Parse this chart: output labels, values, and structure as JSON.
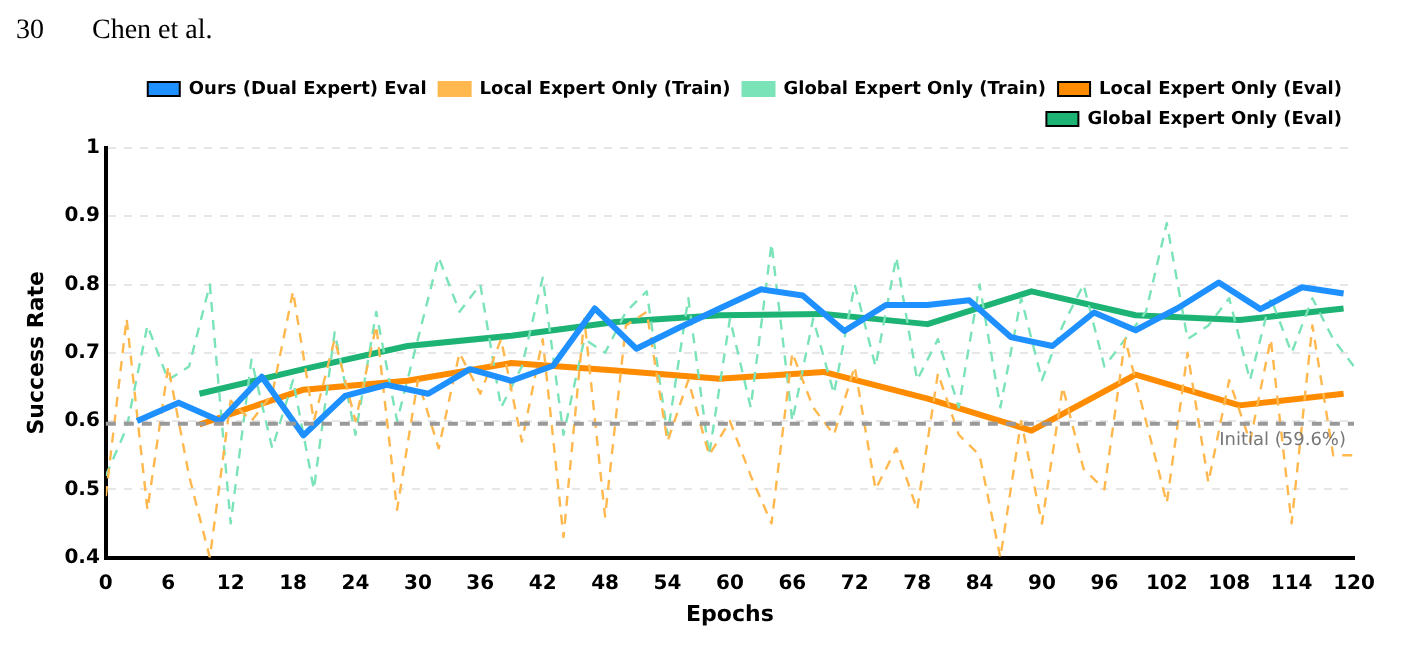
{
  "chart_data": {
    "type": "line",
    "xlabel": "Epochs",
    "ylabel": "Success Rate",
    "annotations": [
      "30",
      "Chen et al."
    ],
    "xlim": [
      0,
      120
    ],
    "xticks": [
      0,
      6,
      12,
      18,
      24,
      30,
      36,
      42,
      48,
      54,
      60,
      66,
      72,
      78,
      84,
      90,
      96,
      102,
      108,
      114,
      120
    ],
    "ylim": [
      0.4,
      1
    ],
    "yticks": [
      0.4,
      0.5,
      0.6,
      0.7,
      0.8,
      0.9,
      1
    ],
    "grid": "y",
    "legend": "top right",
    "marker": "none",
    "ref_lines": [
      {
        "axis": "y",
        "value": 0.596,
        "label": "Initial (59.6%)",
        "color": "#999999",
        "line_style": "dashed"
      }
    ],
    "series": [
      {
        "name": "Ours (Dual Expert) Eval",
        "color": "#1e90ff",
        "line_style": "solid",
        "x": [
          3,
          7,
          11,
          15,
          19,
          23,
          27,
          31,
          35,
          39,
          43,
          47,
          51,
          55,
          59,
          63,
          67,
          71,
          75,
          79,
          83,
          87,
          91,
          95,
          99,
          103,
          107,
          111,
          115,
          119
        ],
        "values": [
          0.6,
          0.627,
          0.6,
          0.665,
          0.579,
          0.637,
          0.653,
          0.64,
          0.676,
          0.659,
          0.681,
          0.765,
          0.706,
          0.736,
          0.765,
          0.793,
          0.784,
          0.732,
          0.77,
          0.77,
          0.777,
          0.723,
          0.71,
          0.759,
          0.733,
          0.765,
          0.803,
          0.764,
          0.796,
          0.787
        ]
      },
      {
        "name": "Local Expert Only (Train)",
        "color": "#ffb84d",
        "line_style": "dashed",
        "x": [
          0,
          2,
          4,
          6,
          8,
          10,
          12,
          14,
          16,
          18,
          20,
          22,
          24,
          26,
          28,
          30,
          32,
          34,
          36,
          38,
          40,
          42,
          44,
          46,
          48,
          50,
          52,
          54,
          56,
          58,
          60,
          62,
          64,
          66,
          68,
          70,
          72,
          74,
          76,
          78,
          80,
          82,
          84,
          86,
          88,
          90,
          92,
          94,
          96,
          98,
          100,
          102,
          104,
          106,
          108,
          110,
          112,
          114,
          116,
          118,
          120
        ],
        "values": [
          0.49,
          0.75,
          0.47,
          0.68,
          0.52,
          0.4,
          0.63,
          0.6,
          0.64,
          0.79,
          0.6,
          0.72,
          0.6,
          0.74,
          0.47,
          0.66,
          0.56,
          0.7,
          0.64,
          0.72,
          0.57,
          0.72,
          0.43,
          0.75,
          0.46,
          0.74,
          0.76,
          0.57,
          0.66,
          0.55,
          0.6,
          0.52,
          0.45,
          0.7,
          0.62,
          0.58,
          0.68,
          0.5,
          0.56,
          0.47,
          0.67,
          0.58,
          0.55,
          0.4,
          0.6,
          0.45,
          0.65,
          0.53,
          0.5,
          0.72,
          0.6,
          0.48,
          0.7,
          0.51,
          0.66,
          0.57,
          0.72,
          0.45,
          0.74,
          0.55,
          0.55
        ]
      },
      {
        "name": "Global Expert Only (Train)",
        "color": "#7be3b8",
        "line_style": "dashed",
        "x": [
          0,
          2,
          4,
          6,
          8,
          10,
          12,
          14,
          16,
          18,
          20,
          22,
          24,
          26,
          28,
          30,
          32,
          34,
          36,
          38,
          40,
          42,
          44,
          46,
          48,
          50,
          52,
          54,
          56,
          58,
          60,
          62,
          64,
          66,
          68,
          70,
          72,
          74,
          76,
          78,
          80,
          82,
          84,
          86,
          88,
          90,
          92,
          94,
          96,
          98,
          100,
          102,
          104,
          106,
          108,
          110,
          112,
          114,
          116,
          118,
          120
        ],
        "values": [
          0.52,
          0.59,
          0.74,
          0.66,
          0.68,
          0.8,
          0.45,
          0.69,
          0.56,
          0.66,
          0.5,
          0.73,
          0.58,
          0.76,
          0.6,
          0.72,
          0.84,
          0.76,
          0.8,
          0.62,
          0.68,
          0.81,
          0.58,
          0.72,
          0.7,
          0.76,
          0.79,
          0.58,
          0.78,
          0.55,
          0.75,
          0.62,
          0.86,
          0.6,
          0.75,
          0.64,
          0.8,
          0.68,
          0.84,
          0.66,
          0.72,
          0.62,
          0.8,
          0.62,
          0.78,
          0.66,
          0.74,
          0.8,
          0.68,
          0.72,
          0.76,
          0.89,
          0.72,
          0.74,
          0.78,
          0.66,
          0.78,
          0.7,
          0.78,
          0.72,
          0.68
        ]
      },
      {
        "name": "Local Expert Only (Eval)",
        "color": "#ff8c00",
        "line_style": "solid",
        "x": [
          9,
          19,
          29,
          39,
          49,
          59,
          69,
          79,
          89,
          99,
          109,
          119
        ],
        "values": [
          0.595,
          0.646,
          0.659,
          0.685,
          0.674,
          0.662,
          0.672,
          0.633,
          0.586,
          0.668,
          0.623,
          0.64
        ]
      },
      {
        "name": "Global Expert Only (Eval)",
        "color": "#1db374",
        "line_style": "solid",
        "x": [
          9,
          19,
          29,
          39,
          49,
          59,
          69,
          79,
          89,
          99,
          109,
          119
        ],
        "values": [
          0.64,
          0.676,
          0.71,
          0.725,
          0.745,
          0.755,
          0.757,
          0.742,
          0.79,
          0.755,
          0.748,
          0.765
        ]
      }
    ]
  }
}
